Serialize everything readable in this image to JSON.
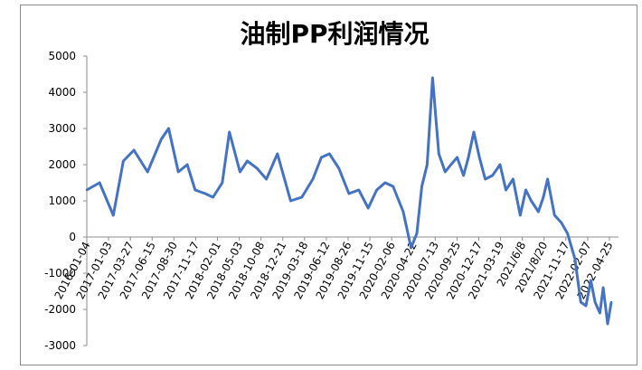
{
  "chart_data": {
    "type": "line",
    "title": "油制PP利润情况",
    "xlabel": "",
    "ylabel": "",
    "ylim": [
      -3000,
      5000
    ],
    "y_ticks": [
      "5000",
      "4000",
      "3000",
      "2000",
      "1000",
      "0",
      "-1000",
      "-2000",
      "-3000"
    ],
    "grid": false,
    "legend": "none",
    "line_color": "#4472c4",
    "x_tick_labels": [
      "2016-01-04",
      "2017-01-03",
      "2017-03-27",
      "2017-06-15",
      "2017-08-30",
      "2017-11-17",
      "2018-02-01",
      "2018-05-03",
      "2018-10-08",
      "2018-12-21",
      "2019-03-18",
      "2019-06-12",
      "2019-08-26",
      "2019-11-15",
      "2020-02-06",
      "2020-04-22",
      "2020-07-13",
      "2020-09-25",
      "2020-12-17",
      "2021-03-19",
      "2021/6/8",
      "2021/8/20",
      "2021-11-17",
      "2022-02-07",
      "2022-04-25"
    ],
    "series": [
      {
        "x": [
          "2016-01-04",
          "2016-03-01",
          "2016-05-01",
          "2016-06-15",
          "2016-08-01",
          "2016-10-01",
          "2016-12-01",
          "2017-01-03",
          "2017-02-15",
          "2017-03-27",
          "2017-05-01",
          "2017-06-15",
          "2017-07-20",
          "2017-08-30",
          "2017-10-01",
          "2017-11-17",
          "2017-12-20",
          "2018-02-01",
          "2018-03-15",
          "2018-05-03",
          "2018-07-01",
          "2018-08-20",
          "2018-10-08",
          "2018-11-15",
          "2018-12-21",
          "2019-02-01",
          "2019-03-18",
          "2019-05-01",
          "2019-06-12",
          "2019-07-20",
          "2019-08-26",
          "2019-10-01",
          "2019-11-15",
          "2019-12-20",
          "2020-01-15",
          "2020-02-06",
          "2020-03-01",
          "2020-03-25",
          "2020-04-10",
          "2020-04-22",
          "2020-05-20",
          "2020-06-15",
          "2020-07-13",
          "2020-08-10",
          "2020-09-01",
          "2020-09-25",
          "2020-10-20",
          "2020-11-15",
          "2020-12-17",
          "2021-01-20",
          "2021-02-15",
          "2021-03-19",
          "2021-04-20",
          "2021-05-15",
          "2021-06-08",
          "2021-07-10",
          "2021-08-01",
          "2021-08-20",
          "2021-09-20",
          "2021-10-20",
          "2021-11-17",
          "2021-12-20",
          "2022-01-15",
          "2022-02-07",
          "2022-03-01",
          "2022-03-20",
          "2022-04-10",
          "2022-04-25",
          "2022-05-15",
          "2022-05-31"
        ],
        "values": [
          1300,
          1500,
          600,
          2100,
          2400,
          1800,
          2700,
          3000,
          1800,
          2000,
          1300,
          1200,
          1100,
          1500,
          2900,
          1800,
          2100,
          1900,
          1600,
          2300,
          1000,
          1100,
          1600,
          2200,
          2300,
          1900,
          1200,
          1300,
          800,
          1300,
          1500,
          1400,
          700,
          -300,
          100,
          1400,
          2000,
          4400,
          3200,
          2300,
          1800,
          2000,
          2200,
          1700,
          2200,
          2900,
          2200,
          1600,
          1700,
          2000,
          1300,
          1600,
          600,
          1300,
          1000,
          700,
          1100,
          1600,
          600,
          400,
          100,
          -600,
          -1800,
          -1900,
          -1200,
          -1800,
          -2100,
          -1400,
          -2400,
          -1800
        ]
      }
    ]
  }
}
